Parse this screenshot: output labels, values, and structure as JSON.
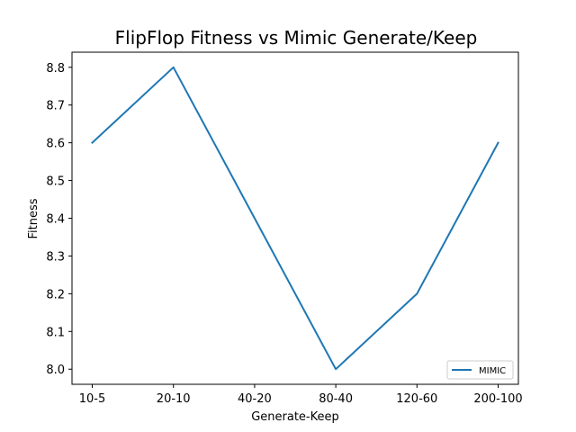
{
  "chart_data": {
    "type": "line",
    "title": "FlipFlop Fitness vs Mimic Generate/Keep",
    "xlabel": "Generate-Keep",
    "ylabel": "Fitness",
    "categories": [
      "10-5",
      "20-10",
      "40-20",
      "80-40",
      "120-60",
      "200-100"
    ],
    "series": [
      {
        "name": "MIMIC",
        "values": [
          8.6,
          8.8,
          8.4,
          8.0,
          8.2,
          8.6
        ],
        "color": "#1f77b4"
      }
    ],
    "ylim": [
      7.96,
      8.84
    ],
    "yticks": [
      8.0,
      8.1,
      8.2,
      8.3,
      8.4,
      8.5,
      8.6,
      8.7,
      8.8
    ],
    "ytick_labels": [
      "8.0",
      "8.1",
      "8.2",
      "8.3",
      "8.4",
      "8.5",
      "8.6",
      "8.7",
      "8.8"
    ],
    "grid": false,
    "legend_position": "lower-right"
  }
}
